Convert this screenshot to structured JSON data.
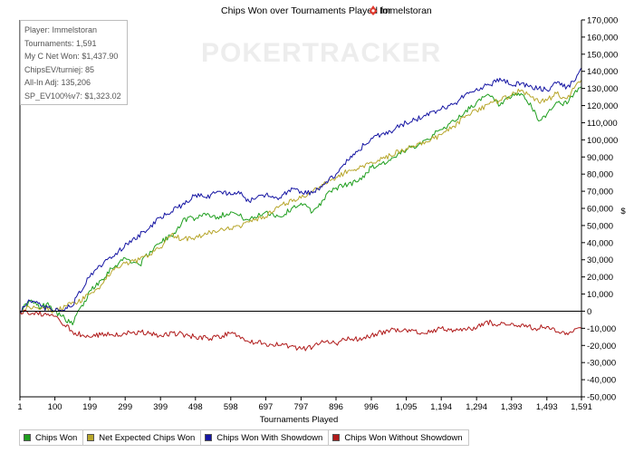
{
  "chart_data": {
    "type": "line",
    "title": "Chips Won over Tournaments Played for",
    "title_player": "Immelstoran",
    "xlabel": "Tournaments Played",
    "ylabel": "$",
    "xlim": [
      1,
      1591
    ],
    "ylim": [
      -50000,
      170000
    ],
    "x_ticks": [
      1,
      100,
      199,
      299,
      399,
      498,
      598,
      697,
      797,
      896,
      996,
      1095,
      1194,
      1294,
      1393,
      1493,
      1591
    ],
    "x_tick_labels": [
      "1",
      "100",
      "199",
      "299",
      "399",
      "498",
      "598",
      "697",
      "797",
      "896",
      "996",
      "1,095",
      "1,194",
      "1,294",
      "1,393",
      "1,493",
      "1,591"
    ],
    "y_ticks": [
      -50000,
      -40000,
      -30000,
      -20000,
      -10000,
      0,
      10000,
      20000,
      30000,
      40000,
      50000,
      60000,
      70000,
      80000,
      90000,
      100000,
      110000,
      120000,
      130000,
      140000,
      150000,
      160000,
      170000
    ],
    "y_tick_labels": [
      "-50,000",
      "-40,000",
      "-30,000",
      "-20,000",
      "-10,000",
      "0",
      "10,000",
      "20,000",
      "30,000",
      "40,000",
      "50,000",
      "60,000",
      "70,000",
      "80,000",
      "90,000",
      "100,000",
      "110,000",
      "120,000",
      "130,000",
      "140,000",
      "150,000",
      "160,000",
      "170,000"
    ],
    "y_axis_position": "right",
    "grid": false,
    "legend_position": "bottom",
    "series": [
      {
        "name": "Chips Won",
        "color": "#1e9e1e",
        "x": [
          1,
          30,
          60,
          80,
          100,
          120,
          150,
          165,
          180,
          199,
          230,
          260,
          299,
          340,
          370,
          399,
          430,
          460,
          480,
          498,
          520,
          560,
          598,
          650,
          697,
          740,
          770,
          797,
          830,
          860,
          880,
          896,
          930,
          960,
          996,
          1050,
          1095,
          1150,
          1194,
          1230,
          1260,
          1294,
          1330,
          1360,
          1393,
          1420,
          1450,
          1470,
          1493,
          1520,
          1550,
          1570,
          1591
        ],
        "y": [
          0,
          6000,
          2000,
          5000,
          0,
          -3000,
          -8000,
          0,
          3000,
          12000,
          18000,
          25000,
          31000,
          27000,
          35000,
          40000,
          44000,
          52000,
          55000,
          54000,
          57000,
          55000,
          58000,
          53000,
          58000,
          55000,
          60000,
          63000,
          58000,
          65000,
          70000,
          72000,
          74000,
          76000,
          84000,
          88000,
          94000,
          100000,
          106000,
          111000,
          116000,
          122000,
          126000,
          120000,
          125000,
          127000,
          119000,
          111000,
          115000,
          122000,
          121000,
          127000,
          131000
        ]
      },
      {
        "name": "Net Expected Chips Won",
        "color": "#b7a62b",
        "x": [
          1,
          40,
          70,
          100,
          130,
          165,
          199,
          230,
          260,
          299,
          340,
          370,
          399,
          430,
          460,
          498,
          540,
          598,
          650,
          697,
          740,
          797,
          830,
          860,
          896,
          930,
          960,
          996,
          1050,
          1095,
          1150,
          1194,
          1230,
          1260,
          1294,
          1330,
          1360,
          1393,
          1420,
          1450,
          1470,
          1493,
          1520,
          1550,
          1570,
          1591
        ],
        "y": [
          0,
          3000,
          2000,
          0,
          3000,
          5000,
          10000,
          15000,
          23000,
          28000,
          30000,
          33000,
          37000,
          45000,
          42000,
          43000,
          46000,
          48000,
          52000,
          55000,
          62000,
          66000,
          70000,
          74000,
          78000,
          82000,
          83000,
          87000,
          91000,
          95000,
          99000,
          103000,
          108000,
          113000,
          117000,
          121000,
          123000,
          126000,
          129000,
          125000,
          122000,
          123000,
          127000,
          124000,
          130000,
          135000
        ]
      },
      {
        "name": "Chips Won With Showdown",
        "color": "#1515a3",
        "x": [
          1,
          30,
          60,
          100,
          150,
          165,
          199,
          240,
          280,
          320,
          360,
          399,
          430,
          460,
          498,
          530,
          560,
          598,
          620,
          650,
          697,
          740,
          770,
          797,
          830,
          860,
          896,
          930,
          960,
          996,
          1050,
          1095,
          1150,
          1194,
          1230,
          1260,
          1294,
          1330,
          1360,
          1393,
          1420,
          1450,
          1470,
          1493,
          1520,
          1550,
          1570,
          1591
        ],
        "y": [
          0,
          6000,
          3000,
          0,
          3000,
          10000,
          20000,
          29000,
          35000,
          42000,
          47000,
          55000,
          58000,
          62000,
          68000,
          66000,
          70000,
          68000,
          70000,
          64000,
          68000,
          66000,
          72000,
          70000,
          69000,
          74000,
          80000,
          88000,
          94000,
          101000,
          105000,
          110000,
          114000,
          118000,
          121000,
          126000,
          130000,
          132000,
          136000,
          132000,
          133000,
          131000,
          130000,
          129000,
          133000,
          131000,
          134000,
          142000
        ]
      },
      {
        "name": "Chips Won Without Showdown",
        "color": "#b01a1a",
        "x": [
          1,
          50,
          100,
          150,
          180,
          230,
          299,
          340,
          399,
          450,
          498,
          540,
          598,
          650,
          697,
          740,
          797,
          830,
          860,
          896,
          930,
          960,
          996,
          1050,
          1095,
          1150,
          1194,
          1230,
          1260,
          1294,
          1320,
          1360,
          1393,
          1430,
          1460,
          1493,
          1530,
          1560,
          1591
        ],
        "y": [
          0,
          -1000,
          -3000,
          -12000,
          -14000,
          -14000,
          -13000,
          -12000,
          -14000,
          -13000,
          -15000,
          -16000,
          -13000,
          -18000,
          -19000,
          -20000,
          -22000,
          -21000,
          -18000,
          -19000,
          -15000,
          -17000,
          -14000,
          -11000,
          -11000,
          -13000,
          -10000,
          -11000,
          -10000,
          -10000,
          -6000,
          -8000,
          -7000,
          -9000,
          -10000,
          -9000,
          -13000,
          -12000,
          -10000
        ]
      }
    ]
  },
  "info_box": {
    "lines": [
      "Player: Immelstoran",
      "Tournaments: 1,591",
      "My C Net Won: $1,437.90",
      "ChipsEV/turniej: 85",
      "All-In Adj: 135,206",
      "SP_EV100%v7: $1,323.02"
    ]
  },
  "watermark": "POKERTRACKER",
  "colors": {
    "axis": "#000000",
    "info_border": "#bdbdbd",
    "watermark": "#ededed",
    "player_icon": "#e03a2f"
  }
}
